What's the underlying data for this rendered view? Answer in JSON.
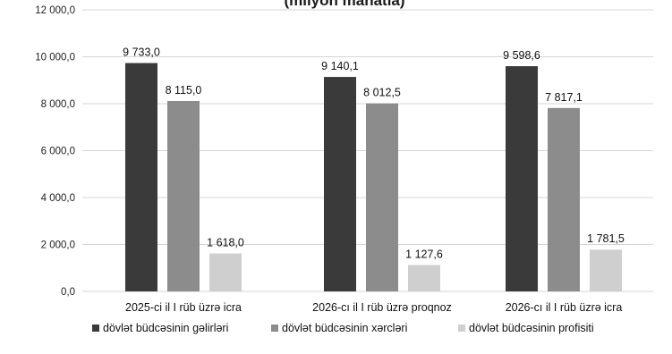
{
  "chart_data": {
    "type": "bar",
    "title": "(milyon manatla)",
    "categories": [
      "2025-ci il I rüb üzrə icra",
      "2026-cı il I rüb üzrə proqnoz",
      "2026-cı il I rüb üzrə icra"
    ],
    "series": [
      {
        "name": "dövlət büdcəsinin gəlirləri",
        "values": [
          9733.0,
          9140.1,
          9598.6
        ],
        "labels": [
          "9 733,0",
          "9 140,1",
          "9 598,6"
        ],
        "color": "#3a3a3a"
      },
      {
        "name": "dövlət büdcəsinin xərcləri",
        "values": [
          8115.0,
          8012.5,
          7817.1
        ],
        "labels": [
          "8 115,0",
          "8 012,5",
          "7 817,1"
        ],
        "color": "#8c8c8c"
      },
      {
        "name": "dövlət büdcəsinin profisiti",
        "values": [
          1618.0,
          1127.6,
          1781.5
        ],
        "labels": [
          "1 618,0",
          "1 127,6",
          "1 781,5"
        ],
        "color": "#cfcfcf"
      }
    ],
    "ylim": [
      0,
      12000
    ],
    "yticks": [
      0,
      2000,
      4000,
      6000,
      8000,
      10000,
      12000
    ],
    "ytick_labels": [
      "0,0",
      "2 000,0",
      "4 000,0",
      "6 000,0",
      "8 000,0",
      "10 000,0",
      "12 000,0"
    ],
    "grid": true,
    "legend": "bottom"
  }
}
